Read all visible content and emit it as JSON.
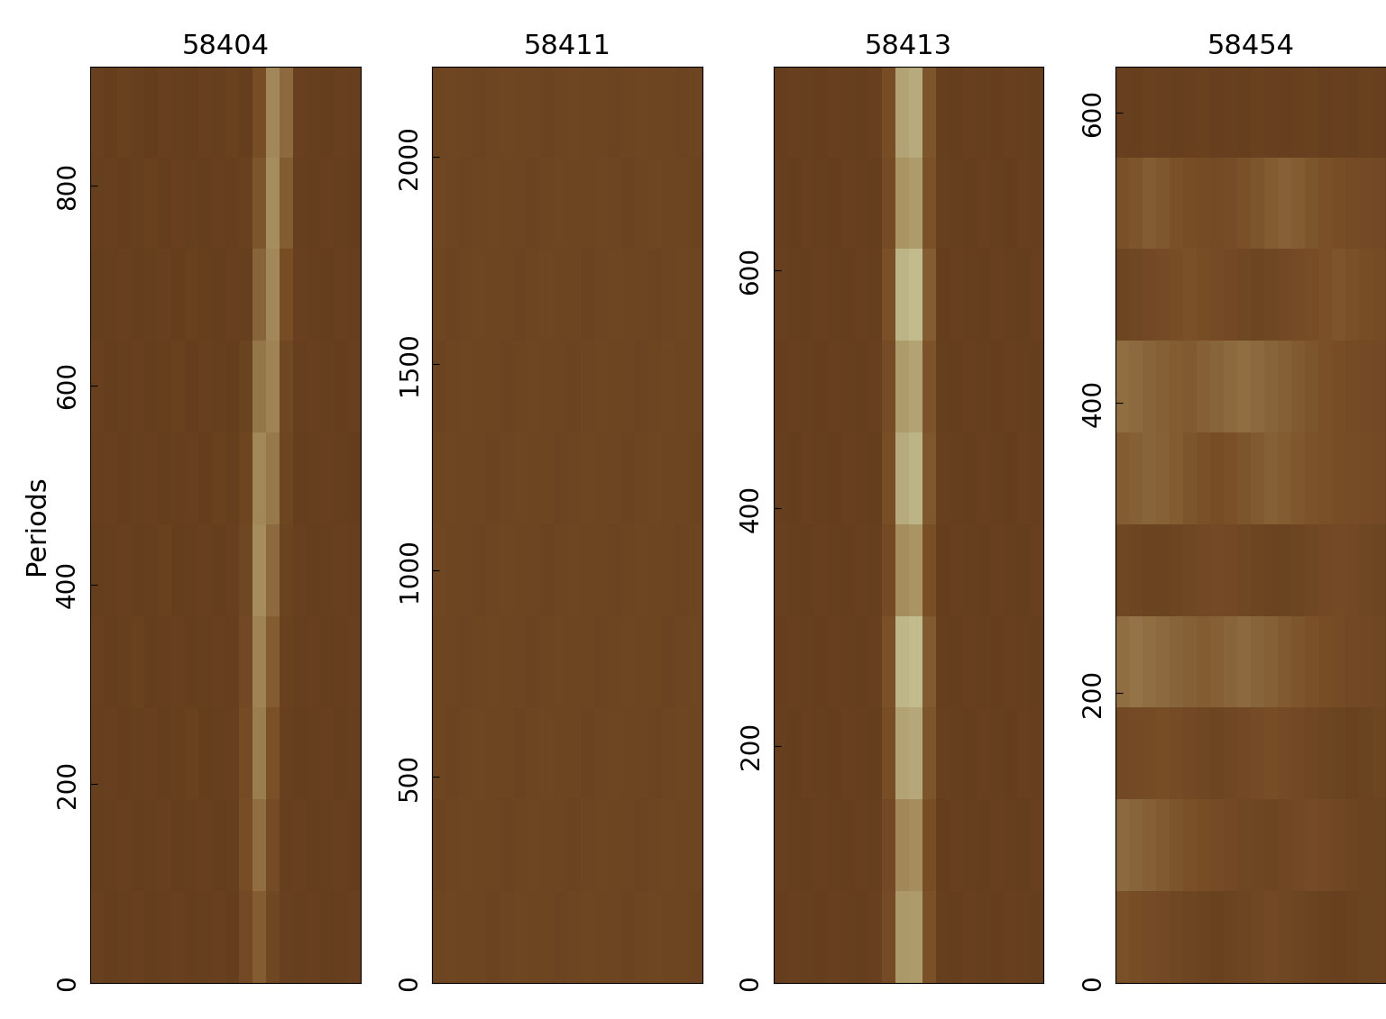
{
  "chart_data": [
    {
      "type": "heatmap",
      "title": "58404",
      "y_label": "Periods",
      "ylim": [
        0,
        920
      ],
      "yticks": [
        0,
        200,
        400,
        600,
        800
      ],
      "tick_labels": "y",
      "zlim": [
        0,
        1
      ],
      "cells": [
        [
          0.36,
          0.34,
          0.37,
          0.35,
          0.33,
          0.36,
          0.35,
          0.34,
          0.36,
          0.35,
          0.37,
          0.34,
          0.48,
          0.72,
          0.6,
          0.36,
          0.35,
          0.34,
          0.36,
          0.35
        ],
        [
          0.35,
          0.36,
          0.34,
          0.35,
          0.37,
          0.34,
          0.36,
          0.35,
          0.34,
          0.36,
          0.35,
          0.37,
          0.52,
          0.74,
          0.55,
          0.35,
          0.34,
          0.36,
          0.35,
          0.34
        ],
        [
          0.34,
          0.35,
          0.36,
          0.34,
          0.35,
          0.36,
          0.34,
          0.37,
          0.35,
          0.34,
          0.36,
          0.35,
          0.58,
          0.72,
          0.48,
          0.36,
          0.35,
          0.34,
          0.36,
          0.35
        ],
        [
          0.36,
          0.34,
          0.35,
          0.36,
          0.34,
          0.35,
          0.37,
          0.34,
          0.36,
          0.35,
          0.34,
          0.38,
          0.65,
          0.7,
          0.42,
          0.35,
          0.36,
          0.35,
          0.34,
          0.36
        ],
        [
          0.35,
          0.36,
          0.34,
          0.35,
          0.36,
          0.34,
          0.35,
          0.36,
          0.34,
          0.37,
          0.35,
          0.4,
          0.72,
          0.66,
          0.4,
          0.34,
          0.35,
          0.36,
          0.35,
          0.34
        ],
        [
          0.34,
          0.35,
          0.36,
          0.34,
          0.35,
          0.37,
          0.34,
          0.35,
          0.36,
          0.34,
          0.36,
          0.42,
          0.74,
          0.6,
          0.38,
          0.36,
          0.34,
          0.35,
          0.36,
          0.35
        ],
        [
          0.36,
          0.34,
          0.35,
          0.37,
          0.34,
          0.35,
          0.36,
          0.34,
          0.35,
          0.36,
          0.35,
          0.44,
          0.7,
          0.55,
          0.37,
          0.35,
          0.36,
          0.34,
          0.35,
          0.36
        ],
        [
          0.35,
          0.36,
          0.34,
          0.35,
          0.36,
          0.34,
          0.35,
          0.37,
          0.34,
          0.35,
          0.36,
          0.46,
          0.68,
          0.5,
          0.36,
          0.34,
          0.35,
          0.36,
          0.34,
          0.35
        ],
        [
          0.34,
          0.35,
          0.36,
          0.34,
          0.35,
          0.36,
          0.34,
          0.35,
          0.36,
          0.34,
          0.35,
          0.48,
          0.62,
          0.46,
          0.35,
          0.36,
          0.34,
          0.35,
          0.36,
          0.34
        ],
        [
          0.36,
          0.34,
          0.35,
          0.36,
          0.34,
          0.35,
          0.36,
          0.34,
          0.35,
          0.36,
          0.34,
          0.44,
          0.55,
          0.42,
          0.36,
          0.35,
          0.36,
          0.34,
          0.35,
          0.36
        ]
      ]
    },
    {
      "type": "heatmap",
      "title": "58411",
      "ylim": [
        0,
        2220
      ],
      "yticks": [
        0,
        500,
        1000,
        1500,
        2000
      ],
      "tick_labels": "y",
      "zlim": [
        0,
        1
      ],
      "cells": [
        [
          0.4,
          0.41,
          0.4,
          0.39,
          0.4,
          0.41,
          0.4,
          0.4,
          0.39,
          0.4,
          0.41,
          0.4,
          0.4,
          0.39,
          0.4,
          0.41,
          0.4,
          0.4,
          0.39,
          0.4
        ],
        [
          0.41,
          0.4,
          0.39,
          0.4,
          0.41,
          0.4,
          0.4,
          0.39,
          0.4,
          0.41,
          0.4,
          0.4,
          0.41,
          0.4,
          0.39,
          0.4,
          0.41,
          0.4,
          0.4,
          0.39
        ],
        [
          0.4,
          0.39,
          0.4,
          0.41,
          0.4,
          0.4,
          0.39,
          0.4,
          0.41,
          0.4,
          0.4,
          0.39,
          0.4,
          0.41,
          0.4,
          0.4,
          0.39,
          0.4,
          0.41,
          0.4
        ],
        [
          0.39,
          0.4,
          0.41,
          0.4,
          0.4,
          0.39,
          0.4,
          0.41,
          0.4,
          0.4,
          0.39,
          0.4,
          0.41,
          0.4,
          0.4,
          0.39,
          0.4,
          0.41,
          0.4,
          0.4
        ],
        [
          0.4,
          0.41,
          0.4,
          0.4,
          0.39,
          0.4,
          0.41,
          0.4,
          0.4,
          0.39,
          0.4,
          0.41,
          0.4,
          0.4,
          0.39,
          0.4,
          0.41,
          0.4,
          0.4,
          0.39
        ],
        [
          0.41,
          0.4,
          0.4,
          0.39,
          0.4,
          0.41,
          0.4,
          0.4,
          0.39,
          0.4,
          0.41,
          0.4,
          0.4,
          0.39,
          0.4,
          0.41,
          0.4,
          0.4,
          0.39,
          0.4
        ],
        [
          0.4,
          0.4,
          0.39,
          0.4,
          0.41,
          0.4,
          0.4,
          0.39,
          0.4,
          0.41,
          0.4,
          0.4,
          0.39,
          0.4,
          0.41,
          0.4,
          0.4,
          0.39,
          0.4,
          0.41
        ],
        [
          0.4,
          0.39,
          0.4,
          0.41,
          0.4,
          0.4,
          0.39,
          0.4,
          0.41,
          0.4,
          0.4,
          0.39,
          0.4,
          0.41,
          0.4,
          0.4,
          0.39,
          0.4,
          0.41,
          0.4
        ],
        [
          0.39,
          0.4,
          0.41,
          0.4,
          0.4,
          0.39,
          0.4,
          0.41,
          0.4,
          0.4,
          0.39,
          0.4,
          0.41,
          0.4,
          0.4,
          0.39,
          0.4,
          0.41,
          0.4,
          0.4
        ],
        [
          0.4,
          0.41,
          0.4,
          0.4,
          0.39,
          0.4,
          0.41,
          0.4,
          0.4,
          0.39,
          0.4,
          0.41,
          0.4,
          0.4,
          0.39,
          0.4,
          0.41,
          0.4,
          0.4,
          0.39
        ]
      ]
    },
    {
      "type": "heatmap",
      "title": "58413",
      "ylim": [
        0,
        772
      ],
      "yticks": [
        0,
        200,
        400,
        600
      ],
      "tick_labels": "y",
      "zlim": [
        0,
        1
      ],
      "cells": [
        [
          0.34,
          0.36,
          0.35,
          0.34,
          0.36,
          0.35,
          0.34,
          0.36,
          0.48,
          0.8,
          0.82,
          0.52,
          0.35,
          0.34,
          0.36,
          0.35,
          0.34,
          0.36,
          0.35,
          0.34
        ],
        [
          0.35,
          0.34,
          0.36,
          0.35,
          0.34,
          0.36,
          0.35,
          0.34,
          0.46,
          0.76,
          0.78,
          0.5,
          0.36,
          0.35,
          0.34,
          0.36,
          0.35,
          0.34,
          0.36,
          0.35
        ],
        [
          0.36,
          0.35,
          0.34,
          0.36,
          0.35,
          0.34,
          0.36,
          0.35,
          0.5,
          0.84,
          0.86,
          0.55,
          0.34,
          0.36,
          0.35,
          0.34,
          0.36,
          0.35,
          0.34,
          0.36
        ],
        [
          0.34,
          0.36,
          0.35,
          0.34,
          0.36,
          0.35,
          0.34,
          0.36,
          0.47,
          0.78,
          0.8,
          0.51,
          0.35,
          0.34,
          0.36,
          0.35,
          0.34,
          0.36,
          0.35,
          0.34
        ],
        [
          0.35,
          0.34,
          0.36,
          0.35,
          0.34,
          0.36,
          0.35,
          0.34,
          0.49,
          0.82,
          0.84,
          0.53,
          0.36,
          0.35,
          0.34,
          0.36,
          0.35,
          0.34,
          0.36,
          0.35
        ],
        [
          0.36,
          0.35,
          0.34,
          0.36,
          0.35,
          0.34,
          0.36,
          0.35,
          0.45,
          0.74,
          0.76,
          0.49,
          0.34,
          0.36,
          0.35,
          0.34,
          0.36,
          0.35,
          0.34,
          0.36
        ],
        [
          0.34,
          0.36,
          0.35,
          0.34,
          0.36,
          0.35,
          0.34,
          0.36,
          0.5,
          0.85,
          0.86,
          0.54,
          0.35,
          0.34,
          0.36,
          0.35,
          0.34,
          0.36,
          0.35,
          0.34
        ],
        [
          0.35,
          0.34,
          0.36,
          0.35,
          0.34,
          0.36,
          0.35,
          0.34,
          0.48,
          0.8,
          0.81,
          0.52,
          0.36,
          0.35,
          0.34,
          0.36,
          0.35,
          0.34,
          0.36,
          0.35
        ],
        [
          0.36,
          0.35,
          0.34,
          0.36,
          0.35,
          0.34,
          0.36,
          0.35,
          0.44,
          0.72,
          0.74,
          0.48,
          0.34,
          0.36,
          0.35,
          0.34,
          0.36,
          0.35,
          0.34,
          0.36
        ],
        [
          0.34,
          0.36,
          0.35,
          0.34,
          0.36,
          0.35,
          0.34,
          0.36,
          0.46,
          0.77,
          0.78,
          0.5,
          0.35,
          0.34,
          0.36,
          0.35,
          0.34,
          0.36,
          0.35,
          0.34
        ]
      ]
    },
    {
      "type": "heatmap",
      "title": "58454",
      "ylim": [
        0,
        632
      ],
      "yticks": [
        0,
        200,
        400,
        600
      ],
      "tick_labels": "y",
      "zlim": [
        0,
        1
      ],
      "cells": [
        [
          0.36,
          0.35,
          0.37,
          0.36,
          0.35,
          0.36,
          0.37,
          0.35,
          0.36,
          0.35,
          0.37,
          0.36,
          0.35,
          0.36,
          0.37,
          0.35,
          0.36,
          0.35,
          0.37,
          0.36
        ],
        [
          0.5,
          0.52,
          0.55,
          0.53,
          0.5,
          0.48,
          0.46,
          0.45,
          0.47,
          0.5,
          0.52,
          0.55,
          0.57,
          0.55,
          0.52,
          0.5,
          0.48,
          0.46,
          0.45,
          0.44
        ],
        [
          0.4,
          0.42,
          0.44,
          0.46,
          0.48,
          0.5,
          0.48,
          0.46,
          0.44,
          0.42,
          0.4,
          0.42,
          0.44,
          0.46,
          0.48,
          0.5,
          0.52,
          0.5,
          0.48,
          0.46
        ],
        [
          0.62,
          0.6,
          0.58,
          0.56,
          0.55,
          0.54,
          0.56,
          0.58,
          0.6,
          0.62,
          0.6,
          0.58,
          0.56,
          0.54,
          0.52,
          0.5,
          0.48,
          0.46,
          0.45,
          0.44
        ],
        [
          0.55,
          0.56,
          0.58,
          0.57,
          0.55,
          0.52,
          0.5,
          0.48,
          0.5,
          0.52,
          0.54,
          0.56,
          0.55,
          0.53,
          0.51,
          0.5,
          0.48,
          0.47,
          0.46,
          0.45
        ],
        [
          0.42,
          0.4,
          0.39,
          0.38,
          0.4,
          0.42,
          0.44,
          0.45,
          0.44,
          0.42,
          0.4,
          0.39,
          0.38,
          0.4,
          0.42,
          0.44,
          0.45,
          0.44,
          0.42,
          0.4
        ],
        [
          0.62,
          0.64,
          0.62,
          0.6,
          0.58,
          0.56,
          0.55,
          0.56,
          0.58,
          0.6,
          0.58,
          0.56,
          0.54,
          0.52,
          0.5,
          0.48,
          0.46,
          0.44,
          0.43,
          0.42
        ],
        [
          0.44,
          0.45,
          0.46,
          0.48,
          0.46,
          0.44,
          0.42,
          0.4,
          0.42,
          0.44,
          0.46,
          0.48,
          0.46,
          0.44,
          0.42,
          0.4,
          0.38,
          0.37,
          0.38,
          0.4
        ],
        [
          0.6,
          0.58,
          0.56,
          0.54,
          0.52,
          0.5,
          0.48,
          0.46,
          0.44,
          0.42,
          0.41,
          0.4,
          0.42,
          0.44,
          0.46,
          0.44,
          0.42,
          0.4,
          0.39,
          0.38
        ],
        [
          0.5,
          0.48,
          0.46,
          0.44,
          0.42,
          0.4,
          0.38,
          0.37,
          0.38,
          0.4,
          0.42,
          0.44,
          0.42,
          0.4,
          0.38,
          0.37,
          0.36,
          0.37,
          0.38,
          0.39
        ]
      ]
    }
  ]
}
